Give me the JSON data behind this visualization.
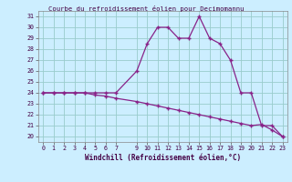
{
  "title": "Courbe du refroidissement éolien pour Decimomannu",
  "xlabel": "Windchill (Refroidissement éolien,°C)",
  "bg_color": "#cceeff",
  "line_color": "#882288",
  "grid_color": "#99cccc",
  "x_ticks": [
    0,
    1,
    2,
    3,
    4,
    5,
    6,
    7,
    9,
    10,
    11,
    12,
    13,
    14,
    15,
    16,
    17,
    18,
    19,
    20,
    21,
    22,
    23
  ],
  "ylim": [
    19.5,
    31.5
  ],
  "xlim": [
    -0.5,
    23.5
  ],
  "y_ticks": [
    20,
    21,
    22,
    23,
    24,
    25,
    26,
    27,
    28,
    29,
    30,
    31
  ],
  "line1_x": [
    0,
    1,
    2,
    3,
    4,
    5,
    6,
    7,
    9,
    10,
    11,
    12,
    13,
    14,
    15,
    16,
    17,
    18,
    19,
    20,
    21,
    22,
    23
  ],
  "line1_y": [
    24,
    24,
    24,
    24,
    24,
    24,
    24,
    24,
    26,
    28.5,
    30,
    30,
    29,
    29,
    31,
    29,
    28.5,
    27,
    24,
    24,
    21,
    21,
    20
  ],
  "line2_x": [
    0,
    1,
    2,
    3,
    4,
    5,
    6,
    7,
    9,
    10,
    11,
    12,
    13,
    14,
    15,
    16,
    17,
    18,
    19,
    20,
    21,
    22,
    23
  ],
  "line2_y": [
    24,
    24,
    24,
    24,
    24,
    23.8,
    23.7,
    23.5,
    23.2,
    23.0,
    22.8,
    22.6,
    22.4,
    22.2,
    22.0,
    21.8,
    21.6,
    21.4,
    21.2,
    21.0,
    21.1,
    20.6,
    20.0
  ]
}
